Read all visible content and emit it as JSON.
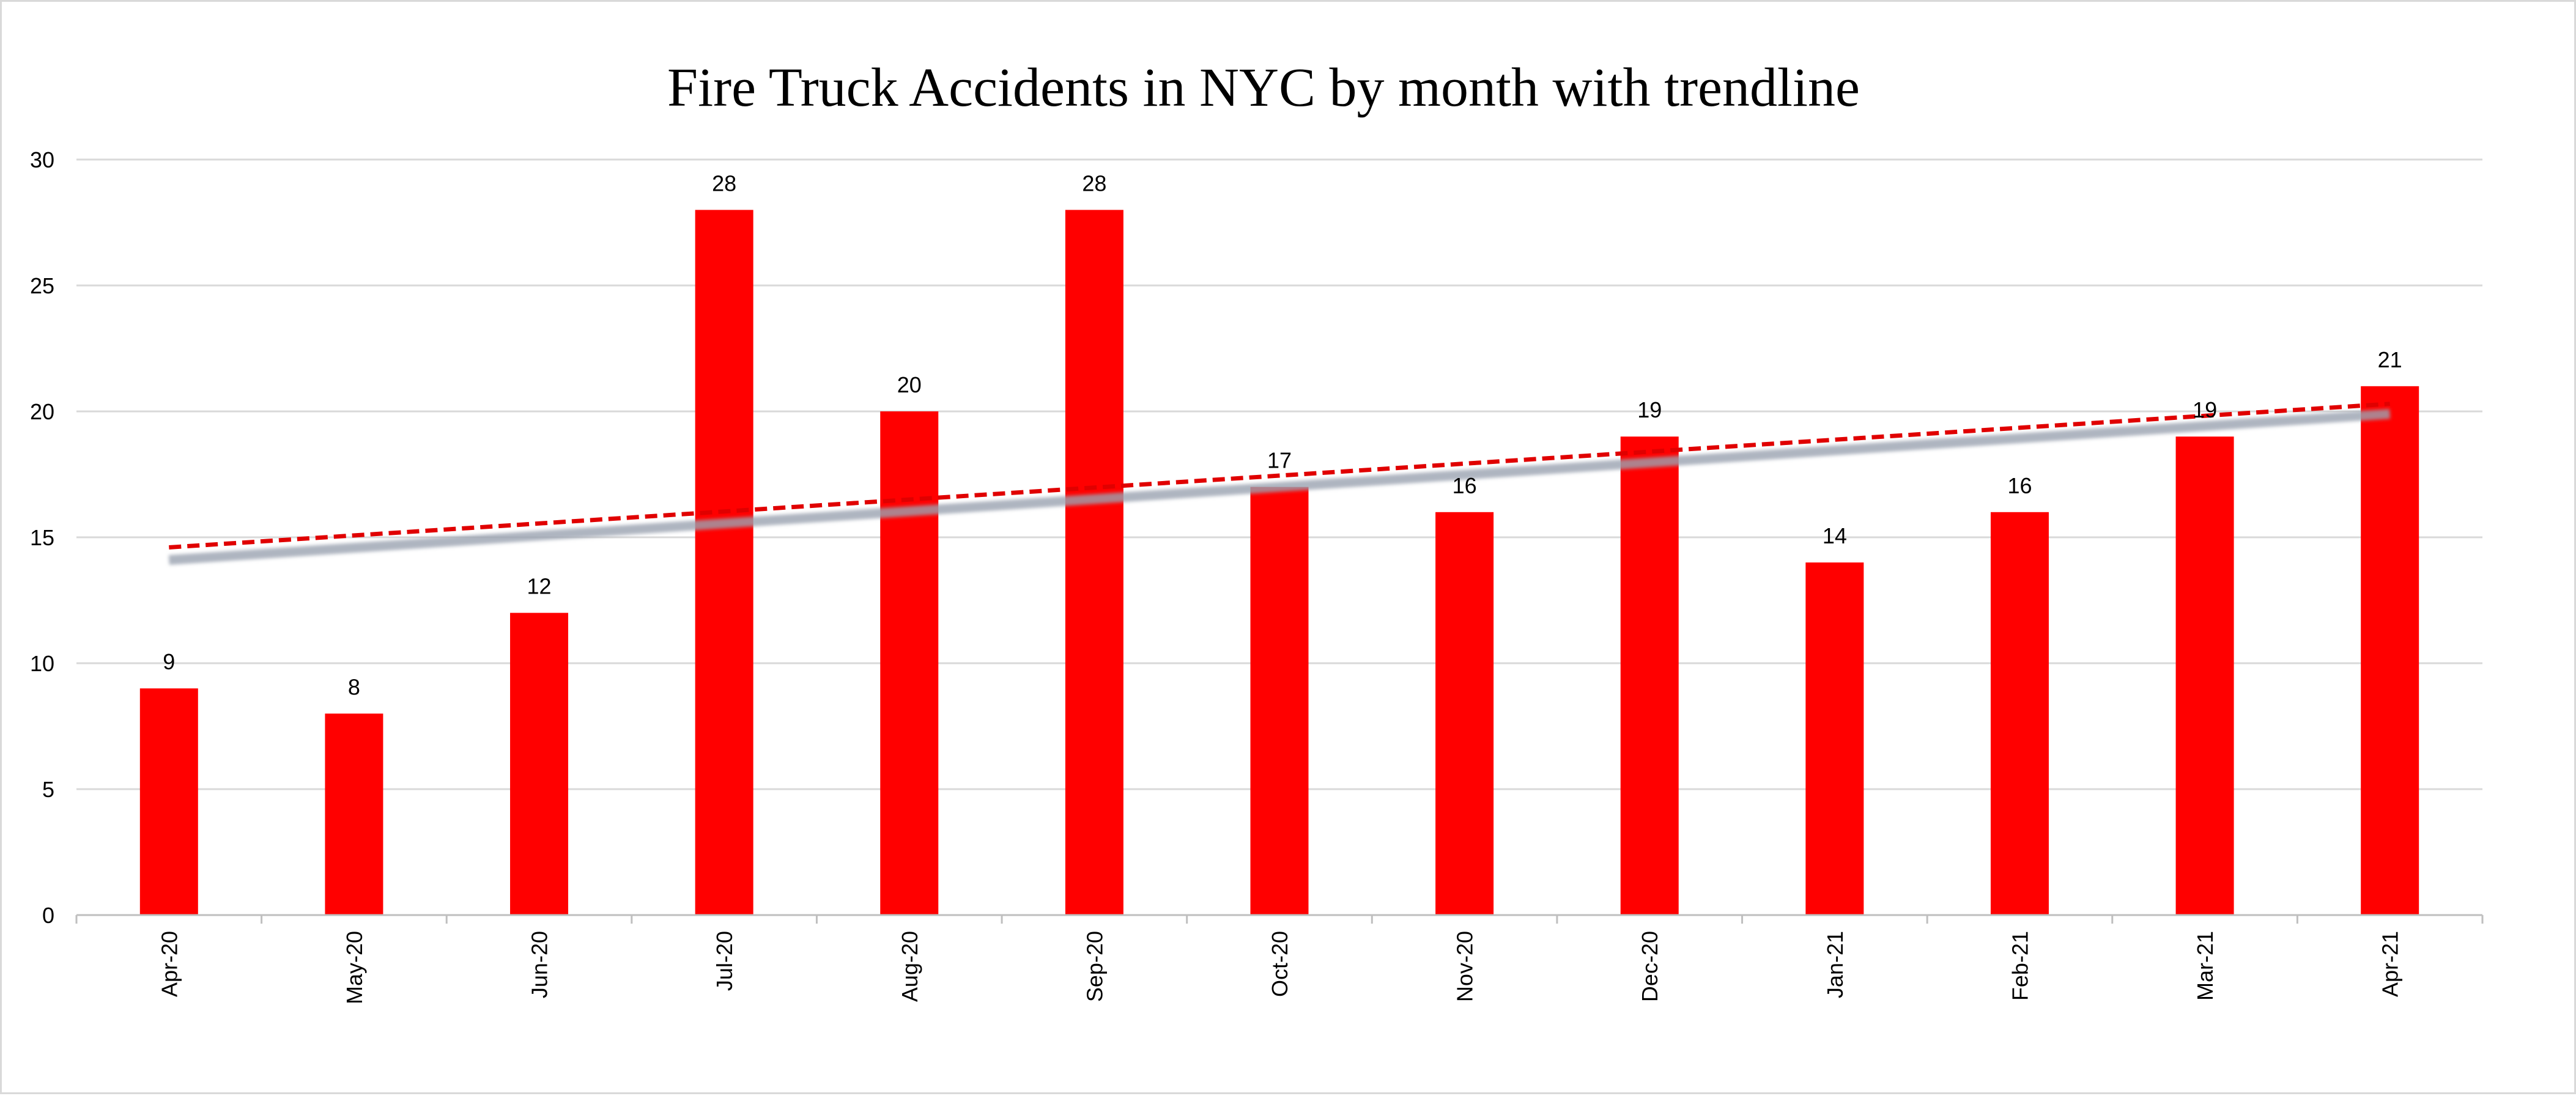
{
  "chart_data": {
    "type": "bar",
    "title": "Fire Truck Accidents in NYC by month with trendline",
    "xlabel": "",
    "ylabel": "",
    "categories": [
      "Apr-20",
      "May-20",
      "Jun-20",
      "Jul-20",
      "Aug-20",
      "Sep-20",
      "Oct-20",
      "Nov-20",
      "Dec-20",
      "Jan-21",
      "Feb-21",
      "Mar-21",
      "Apr-21"
    ],
    "series": [
      {
        "values": [
          9,
          8,
          12,
          28,
          20,
          28,
          17,
          16,
          19,
          14,
          16,
          19,
          21
        ],
        "color": "#ff0000"
      }
    ],
    "trendlines": [
      {
        "style": "dashed",
        "color": "#e00000",
        "start": 14.6,
        "end": 20.3
      },
      {
        "style": "solid-blurred",
        "color": "#9aa3b0",
        "start": 14.1,
        "end": 19.9
      }
    ],
    "ylim": [
      0,
      30
    ],
    "yticks": [
      0,
      5,
      10,
      15,
      20,
      25,
      30
    ],
    "grid": true,
    "legend": "none",
    "colors": {
      "bar": "#ff0000",
      "grid": "#d9d9d9",
      "axis": "#bfbfbf",
      "border": "#d9d9d9"
    }
  }
}
